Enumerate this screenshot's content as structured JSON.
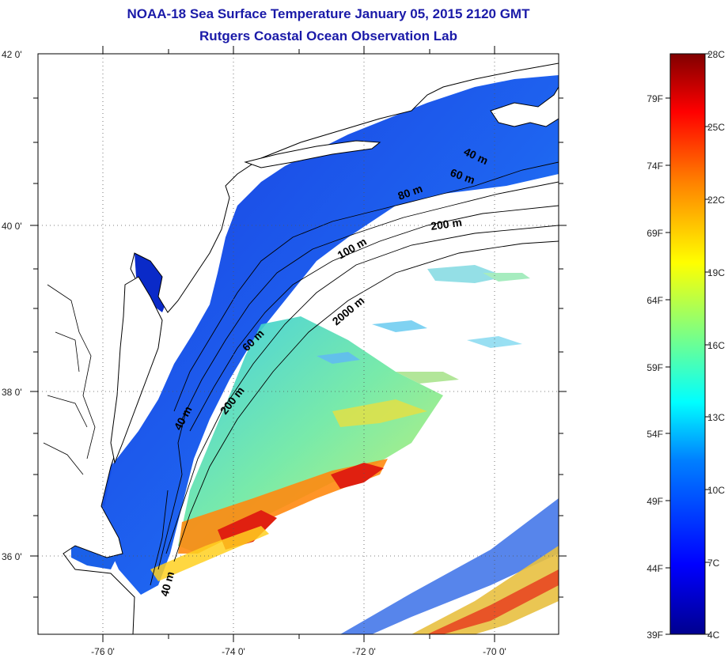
{
  "header": {
    "title": "NOAA-18 Sea Surface Temperature January 05, 2015 2120 GMT",
    "subtitle": "Rutgers Coastal Ocean Observation Lab"
  },
  "map": {
    "lon_ticks": [
      "-76 0'",
      "-74 0'",
      "-72 0'",
      "-70 0'"
    ],
    "lat_ticks": [
      "42 0'",
      "40 0'",
      "38 0'",
      "36 0'"
    ],
    "isobath_labels": [
      "40 m",
      "60 m",
      "80 m",
      "200 m",
      "100 m",
      "2000 m",
      "60 m",
      "200 m",
      "40 m",
      "40 m"
    ]
  },
  "colorbar": {
    "fahrenheit_labels": [
      "79F",
      "74F",
      "69F",
      "64F",
      "59F",
      "54F",
      "49F",
      "44F",
      "39F"
    ],
    "celsius_labels": [
      "28C",
      "25C",
      "22C",
      "19C",
      "16C",
      "13C",
      "10C",
      "7C",
      "4C"
    ],
    "colors": [
      "#00008f",
      "#0000ff",
      "#0080ff",
      "#00ffff",
      "#80ff80",
      "#ffff00",
      "#ff8000",
      "#ff0000",
      "#800000"
    ]
  }
}
